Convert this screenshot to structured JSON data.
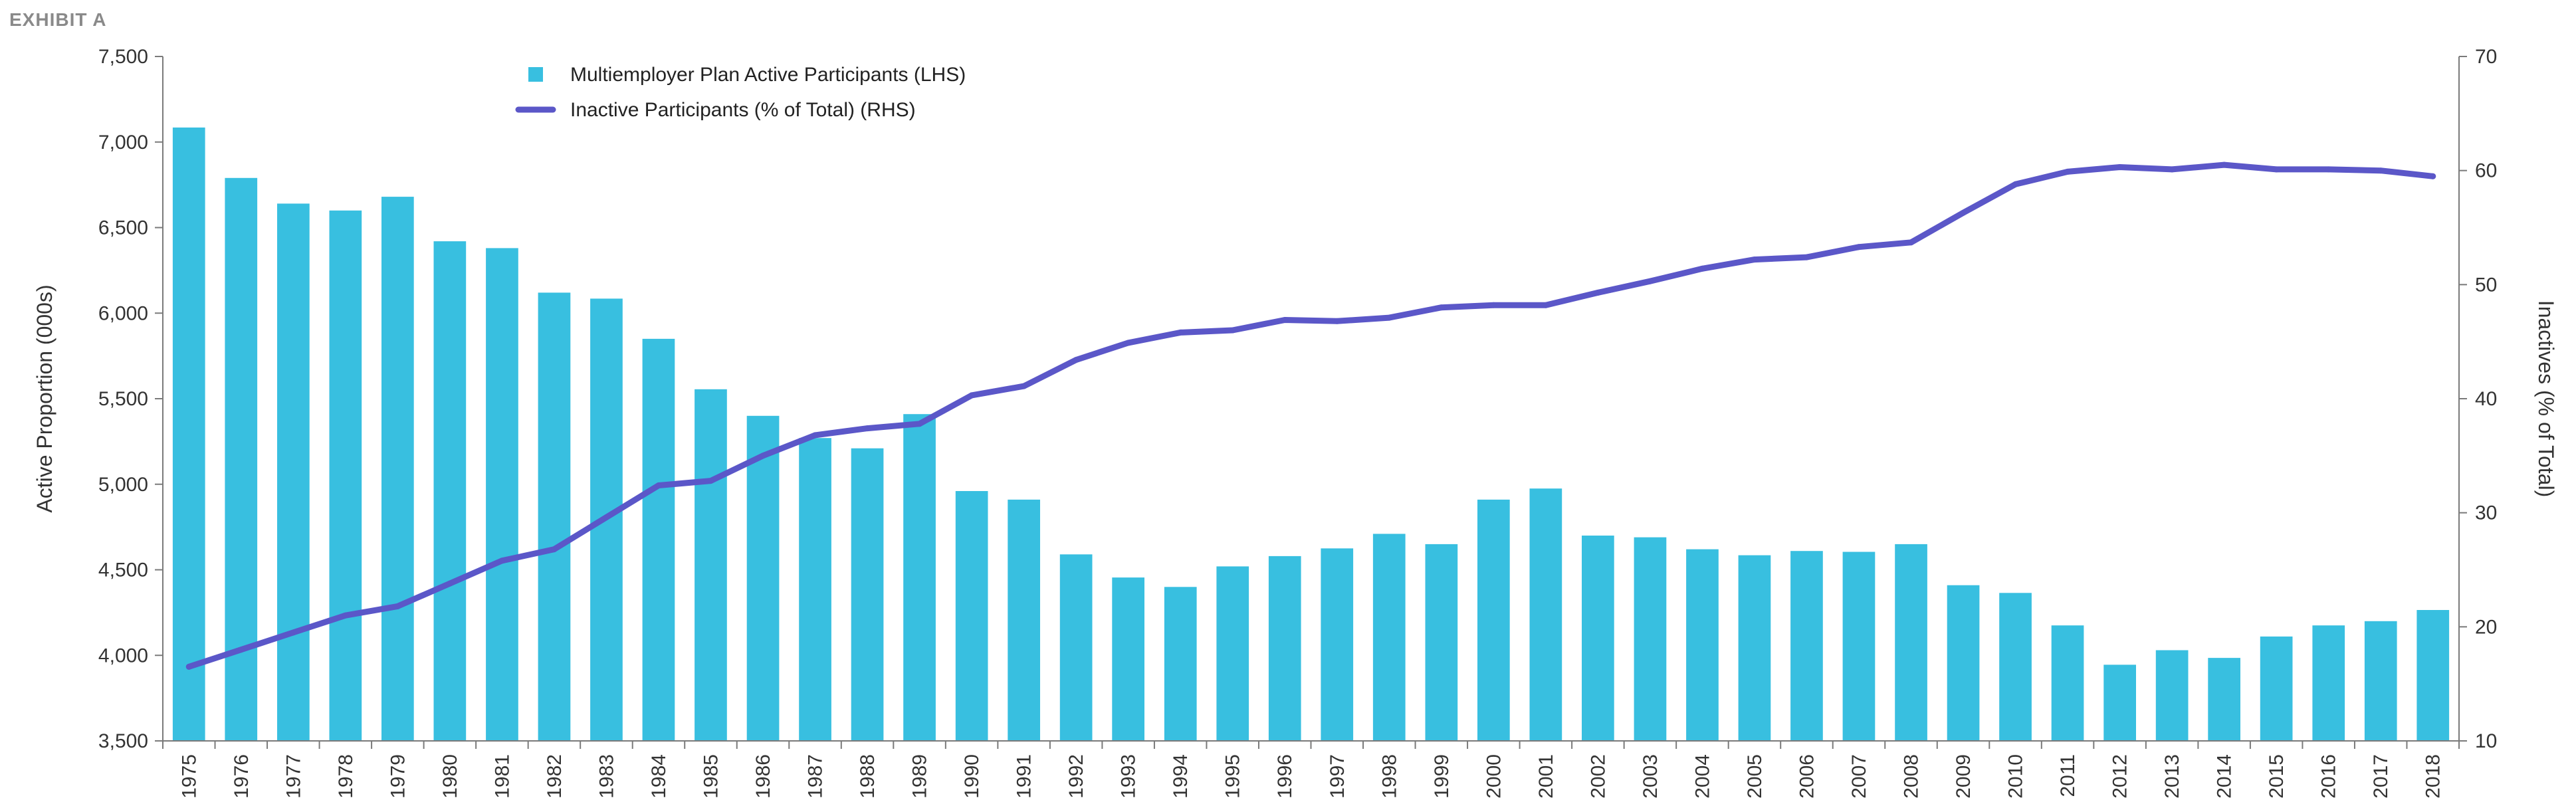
{
  "exhibit_label": "EXHIBIT A",
  "chart_data": {
    "type": "bar+line",
    "categories": [
      "1975",
      "1976",
      "1977",
      "1978",
      "1979",
      "1980",
      "1981",
      "1982",
      "1983",
      "1984",
      "1985",
      "1986",
      "1987",
      "1988",
      "1989",
      "1990",
      "1991",
      "1992",
      "1993",
      "1994",
      "1995",
      "1996",
      "1997",
      "1998",
      "1999",
      "2000",
      "2001",
      "2002",
      "2003",
      "2004",
      "2005",
      "2006",
      "2007",
      "2008",
      "2009",
      "2010",
      "2011",
      "2012",
      "2013",
      "2014",
      "2015",
      "2016",
      "2017",
      "2018"
    ],
    "series": [
      {
        "name": "Multiemployer Plan Active Participants (LHS)",
        "type": "bar",
        "axis": "left",
        "color": "#38bfe0",
        "values": [
          7085,
          6790,
          6640,
          6600,
          6680,
          6420,
          6380,
          6120,
          6085,
          5850,
          5555,
          5400,
          5270,
          5210,
          5410,
          4960,
          4910,
          4590,
          4455,
          4400,
          4520,
          4580,
          4625,
          4710,
          4650,
          4910,
          4975,
          4700,
          4690,
          4620,
          4585,
          4610,
          4605,
          4650,
          4410,
          4365,
          4175,
          3945,
          4030,
          3985,
          4110,
          4175,
          4200,
          4265
        ]
      },
      {
        "name": "Inactive Participants (% of Total) (RHS)",
        "type": "line",
        "axis": "right",
        "color": "#5b57c8",
        "values": [
          16.5,
          18.0,
          19.5,
          21.0,
          21.8,
          23.8,
          25.8,
          26.8,
          29.6,
          32.4,
          32.8,
          35.0,
          36.8,
          37.4,
          37.8,
          40.3,
          41.1,
          43.4,
          44.9,
          45.8,
          46.0,
          46.9,
          46.8,
          47.1,
          48.0,
          48.2,
          48.2,
          49.3,
          50.3,
          51.4,
          52.2,
          52.4,
          53.3,
          53.7,
          56.3,
          58.8,
          59.9,
          60.3,
          60.1,
          60.5,
          60.1,
          60.1,
          60.0,
          59.5
        ]
      }
    ],
    "left_axis": {
      "label": "Active Proportion (000s)",
      "ylim": [
        3500,
        7500
      ],
      "ticks": [
        "3,500",
        "4,000",
        "4,500",
        "5,000",
        "5,500",
        "6,000",
        "6,500",
        "7,000",
        "7,500"
      ],
      "tick_values": [
        3500,
        4000,
        4500,
        5000,
        5500,
        6000,
        6500,
        7000,
        7500
      ]
    },
    "right_axis": {
      "label": "Inactives (% of Total)",
      "ylim": [
        10,
        70
      ],
      "ticks": [
        "10",
        "20",
        "30",
        "40",
        "50",
        "60",
        "70"
      ],
      "tick_values": [
        10,
        20,
        30,
        40,
        50,
        60,
        70
      ]
    },
    "legend_placement": "top-left inside plot",
    "grid": false
  }
}
